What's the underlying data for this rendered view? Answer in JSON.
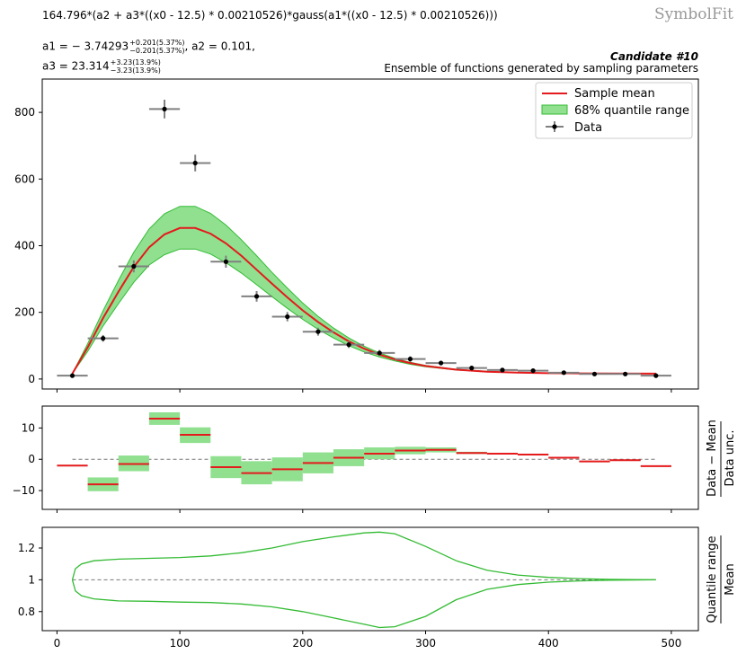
{
  "header": {
    "formula": "164.796*(a2 + a3*((x0 - 12.5) * 0.00210526)*gauss(a1*((x0 - 12.5) * 0.00210526)))",
    "brand": "SymbolFit",
    "a1_label": "a1 = − 3.74293",
    "a1_up": "+0.201(5.37%)",
    "a1_down": "−0.201(5.37%)",
    "a2_text": ",  a2 = 0.101,",
    "a3_label": "a3 = 23.314",
    "a3_up": "+3.23(13.9%)",
    "a3_down": "−3.23(13.9%)",
    "candidate": "Candidate #10",
    "subtitle": "Ensemble of functions generated by sampling parameters"
  },
  "legend": {
    "mean": "Sample mean",
    "band": "68% quantile range",
    "data": "Data"
  },
  "colors": {
    "mean": "#e41a1c",
    "band_fill": "#90e090",
    "band_edge": "#33bb33",
    "data": "#000000",
    "xerr": "#808080"
  },
  "chart_data": [
    {
      "type": "scatter",
      "panel": "main",
      "xlim": [
        -12,
        522
      ],
      "ylim": [
        -30,
        900
      ],
      "xticks": [
        0,
        100,
        200,
        300,
        400,
        500
      ],
      "yticks": [
        0,
        200,
        400,
        600,
        800
      ],
      "ytick_labels": [
        "0",
        "200",
        "400",
        "600",
        "800"
      ],
      "data": {
        "x": [
          12.5,
          37.5,
          62.5,
          87.5,
          112.5,
          137.5,
          162.5,
          187.5,
          212.5,
          237.5,
          262.5,
          287.5,
          312.5,
          337.5,
          362.5,
          387.5,
          412.5,
          437.5,
          462.5,
          487.5
        ],
        "xerr": 12.5,
        "y": [
          10,
          122,
          338,
          810,
          648,
          352,
          248,
          187,
          142,
          103,
          78,
          60,
          48,
          33,
          27,
          25,
          19,
          15,
          15,
          10
        ],
        "yerr": [
          3,
          10,
          18,
          28,
          25,
          18,
          16,
          14,
          12,
          10,
          9,
          8,
          7,
          6,
          5,
          5,
          4,
          4,
          4,
          3
        ]
      },
      "mean_curve": {
        "x": [
          12.5,
          25,
          37.5,
          50,
          62.5,
          75,
          87.5,
          100,
          112.5,
          125,
          137.5,
          150,
          162.5,
          175,
          187.5,
          200,
          212.5,
          225,
          237.5,
          250,
          262.5,
          275,
          287.5,
          300,
          325,
          350,
          375,
          400,
          425,
          450,
          487.5
        ],
        "y": [
          16,
          95,
          183,
          262,
          336,
          395,
          434,
          453,
          453,
          436,
          407,
          370,
          328,
          286,
          245,
          206,
          171,
          140,
          113,
          91,
          73,
          59,
          48,
          39,
          28,
          22,
          19,
          17.5,
          17,
          16.5,
          16
        ]
      },
      "band_upper": {
        "x": [
          12.5,
          25,
          37.5,
          50,
          62.5,
          75,
          87.5,
          100,
          112.5,
          125,
          137.5,
          150,
          162.5,
          175,
          187.5,
          200,
          212.5,
          225,
          237.5,
          250,
          262.5,
          275,
          287.5,
          300,
          325,
          350,
          375,
          400,
          425,
          450,
          487.5
        ],
        "y": [
          16,
          106,
          205,
          296,
          380,
          450,
          496,
          518,
          518,
          497,
          462,
          418,
          370,
          320,
          273,
          228,
          188,
          153,
          123,
          98,
          78,
          62,
          50,
          41,
          29,
          23,
          20,
          18,
          17.2,
          16.6,
          16
        ]
      },
      "band_lower": {
        "x": [
          12.5,
          25,
          37.5,
          50,
          62.5,
          75,
          87.5,
          100,
          112.5,
          125,
          137.5,
          150,
          162.5,
          175,
          187.5,
          200,
          212.5,
          225,
          237.5,
          250,
          262.5,
          275,
          287.5,
          300,
          325,
          350,
          375,
          400,
          425,
          450,
          487.5
        ],
        "y": [
          16,
          83,
          159,
          226,
          290,
          342,
          373,
          390,
          390,
          375,
          349,
          318,
          283,
          247,
          212,
          179,
          149,
          123,
          100,
          81,
          66,
          54,
          44,
          36.5,
          27,
          21.5,
          18.7,
          17.3,
          16.8,
          16.4,
          16
        ]
      }
    },
    {
      "type": "bar",
      "panel": "residual",
      "xlim": [
        -12,
        522
      ],
      "ylim": [
        -16,
        17
      ],
      "yticks": [
        -10,
        0,
        10
      ],
      "ytick_labels": [
        "−10",
        "0",
        "10"
      ],
      "ylabel_top": "Data − Mean",
      "ylabel_bottom": "Data unc.",
      "x": [
        12.5,
        37.5,
        62.5,
        87.5,
        112.5,
        137.5,
        162.5,
        187.5,
        212.5,
        237.5,
        262.5,
        287.5,
        312.5,
        337.5,
        362.5,
        387.5,
        412.5,
        437.5,
        462.5,
        487.5
      ],
      "mean": [
        -2,
        -8,
        -1.5,
        13,
        7.8,
        -2.5,
        -4.4,
        -3.2,
        -1.2,
        0.5,
        1.8,
        2.8,
        3,
        2,
        1.8,
        1.5,
        0.5,
        -0.7,
        -0.3,
        -2.2
      ],
      "band_low": [
        -2,
        -10.2,
        -3.8,
        11,
        5.2,
        -6,
        -8,
        -7,
        -4.5,
        -2.2,
        0,
        1.6,
        2.2,
        1.7,
        1.6,
        1.3,
        0.3,
        -0.9,
        -0.5,
        -2.2
      ],
      "band_high": [
        -2,
        -5.8,
        1.2,
        15,
        10.2,
        1,
        -0.6,
        0.6,
        2.2,
        3.2,
        3.8,
        4,
        3.8,
        2.4,
        2,
        1.7,
        0.7,
        -0.5,
        -0.1,
        -2.2
      ]
    },
    {
      "type": "line",
      "panel": "ratio",
      "xlim": [
        -12,
        522
      ],
      "ylim": [
        0.68,
        1.33
      ],
      "yticks": [
        0.8,
        1,
        1.2
      ],
      "ytick_labels": [
        "0.8",
        "1",
        "1.2"
      ],
      "xtick_labels": [
        "0",
        "100",
        "200",
        "300",
        "400",
        "500"
      ],
      "ylabel_top": "Quantile range",
      "ylabel_bottom": "Mean",
      "x": [
        12.5,
        15,
        20,
        30,
        50,
        75,
        100,
        125,
        150,
        175,
        200,
        225,
        250,
        262.5,
        275,
        300,
        325,
        350,
        375,
        400,
        425,
        450,
        487.5
      ],
      "upper": [
        1.0,
        1.07,
        1.1,
        1.12,
        1.13,
        1.135,
        1.14,
        1.15,
        1.17,
        1.2,
        1.24,
        1.27,
        1.295,
        1.3,
        1.29,
        1.21,
        1.12,
        1.06,
        1.03,
        1.015,
        1.007,
        1.003,
        1.0
      ],
      "lower": [
        1.0,
        0.93,
        0.9,
        0.88,
        0.867,
        0.865,
        0.86,
        0.857,
        0.848,
        0.83,
        0.8,
        0.76,
        0.72,
        0.7,
        0.705,
        0.77,
        0.875,
        0.94,
        0.97,
        0.985,
        0.993,
        0.997,
        1.0
      ]
    }
  ]
}
